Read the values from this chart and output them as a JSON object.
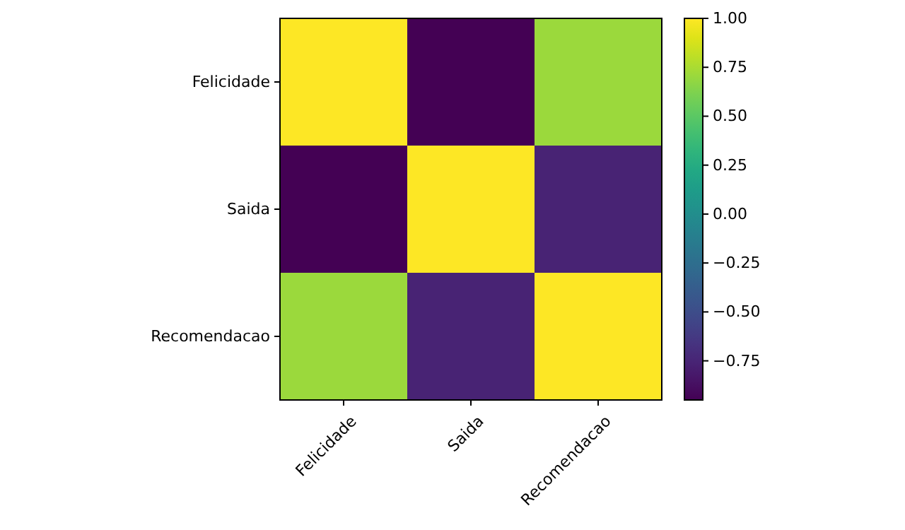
{
  "chart_data": {
    "type": "heatmap",
    "categories": [
      "Felicidade",
      "Saida",
      "Recomendacao"
    ],
    "y_categories": [
      "Felicidade",
      "Saida",
      "Recomendacao"
    ],
    "cells": [
      [
        1,
        -0.95,
        0.71
      ],
      [
        -0.95,
        1,
        -0.76
      ],
      [
        0.71,
        -0.76,
        1
      ]
    ],
    "clim": [
      -0.95,
      1
    ],
    "cticks": [
      {
        "value": 1,
        "label": "1.00"
      },
      {
        "value": 0.75,
        "label": "0.75"
      },
      {
        "value": 0.5,
        "label": "0.50"
      },
      {
        "value": 0.25,
        "label": "0.25"
      },
      {
        "value": 0,
        "label": "0.00"
      },
      {
        "value": -0.25,
        "label": "−0.25"
      },
      {
        "value": -0.5,
        "label": "−0.50"
      },
      {
        "value": -0.75,
        "label": "−0.75"
      }
    ]
  }
}
